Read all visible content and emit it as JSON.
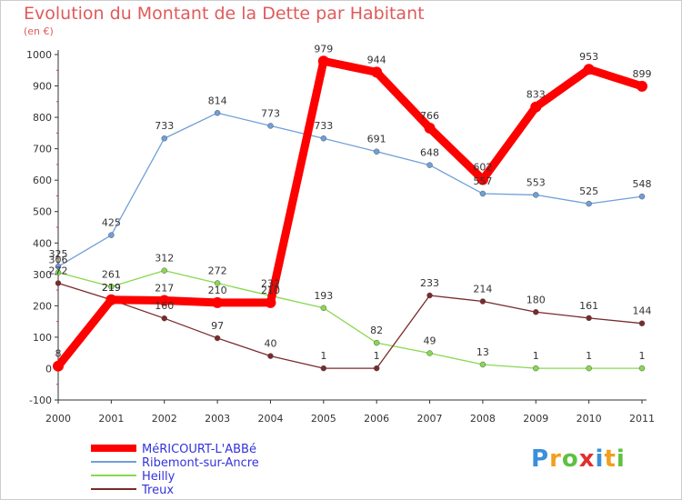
{
  "title": "Evolution du Montant de la Dette par Habitant",
  "subtitle": "(en €)",
  "logo": "Proxiti",
  "chart_data": {
    "type": "line",
    "x": [
      "2000",
      "2001",
      "2002",
      "2003",
      "2004",
      "2005",
      "2006",
      "2007",
      "2008",
      "2009",
      "2010",
      "2011"
    ],
    "ylim": [
      -100,
      1000
    ],
    "yticks": [
      -100,
      0,
      100,
      200,
      300,
      400,
      500,
      600,
      700,
      800,
      900,
      1000
    ],
    "grid": false,
    "legend_position": "bottom-left",
    "series": [
      {
        "name": "MéRICOURT-L'ABBé",
        "color": "#ff0000",
        "width": 9,
        "values": [
          8,
          219,
          217,
          210,
          210,
          979,
          944,
          766,
          602,
          833,
          953,
          899
        ]
      },
      {
        "name": "Ribemont-sur-Ancre",
        "color": "#6f9fd8",
        "width": 1.3,
        "values": [
          325,
          425,
          733,
          814,
          773,
          733,
          691,
          648,
          557,
          553,
          525,
          548
        ]
      },
      {
        "name": "Heilly",
        "color": "#88d850",
        "width": 1.3,
        "values": [
          306,
          261,
          312,
          272,
          232,
          193,
          82,
          49,
          13,
          1,
          1,
          1
        ]
      },
      {
        "name": "Treux",
        "color": "#7a2a2a",
        "width": 1.3,
        "values": [
          272,
          219,
          160,
          97,
          40,
          1,
          1,
          233,
          214,
          180,
          161,
          144
        ]
      }
    ]
  }
}
